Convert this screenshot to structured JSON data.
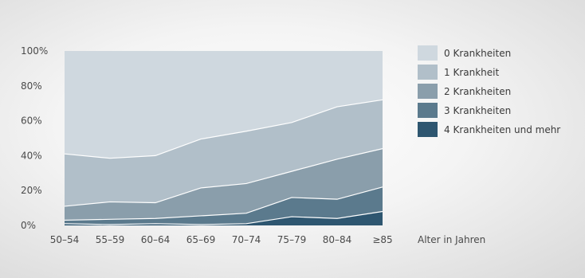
{
  "chart_data": {
    "type": "area",
    "stacked": true,
    "categories": [
      "50–54",
      "55–59",
      "60–64",
      "65–69",
      "70–74",
      "75–79",
      "80–84",
      "≥85"
    ],
    "xlabel": "Alter in Jahren",
    "ylim": [
      0,
      100
    ],
    "yticks": [
      "0%",
      "20%",
      "40%",
      "60%",
      "80%",
      "100%"
    ],
    "grid": false,
    "legend_position": "right",
    "series": [
      {
        "name": "4 Krankheiten und mehr",
        "color": "#2e5670",
        "values": [
          1,
          0.5,
          1,
          0.5,
          1,
          5,
          4,
          8
        ]
      },
      {
        "name": "3 Krankheiten",
        "color": "#5b7a8d",
        "values": [
          2,
          3,
          3,
          5,
          6,
          11,
          11,
          14
        ]
      },
      {
        "name": "2 Krankheiten",
        "color": "#8a9eab",
        "values": [
          8,
          10,
          9,
          16,
          17,
          15,
          23,
          22
        ]
      },
      {
        "name": "1 Krankheit",
        "color": "#b1bfc9",
        "values": [
          30,
          25,
          27,
          28,
          30,
          28,
          30,
          28
        ]
      },
      {
        "name": "0 Krankheiten",
        "color": "#cfd8df",
        "values": [
          59,
          61.5,
          60,
          50.5,
          46,
          41,
          32,
          28
        ]
      }
    ],
    "legend_order": [
      "0 Krankheiten",
      "1 Krankheit",
      "2 Krankheiten",
      "3 Krankheiten",
      "4 Krankheiten und mehr"
    ]
  }
}
